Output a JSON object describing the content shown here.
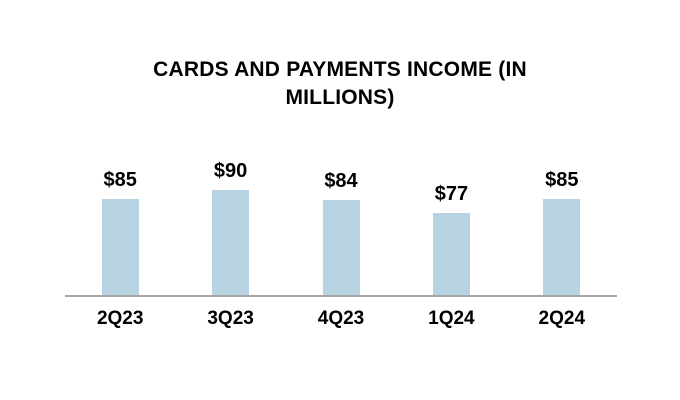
{
  "page": {
    "background_color": "#ffffff",
    "text_color": "#000000"
  },
  "chart_data": {
    "type": "bar",
    "title": "CARDS AND PAYMENTS INCOME (IN MILLIONS)",
    "categories": [
      "2Q23",
      "3Q23",
      "4Q23",
      "1Q24",
      "2Q24"
    ],
    "values": [
      85,
      90,
      84,
      77,
      85
    ],
    "value_labels": [
      "$85",
      "$90",
      "$84",
      "$77",
      "$85"
    ],
    "xlabel": "",
    "ylabel": "",
    "legend_position": "none",
    "gridlines": false,
    "y_axis_visible": false,
    "bar_color": "#b7d3e2",
    "axis_line_color": "#a6a6a6",
    "label_color": "#000000"
  }
}
